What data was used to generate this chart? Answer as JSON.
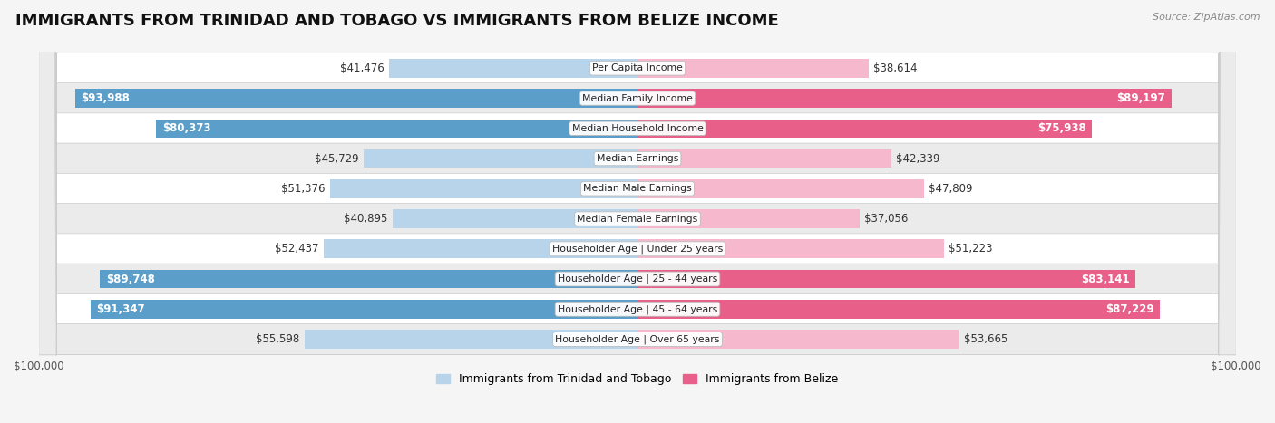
{
  "title": "IMMIGRANTS FROM TRINIDAD AND TOBAGO VS IMMIGRANTS FROM BELIZE INCOME",
  "source": "Source: ZipAtlas.com",
  "categories": [
    "Per Capita Income",
    "Median Family Income",
    "Median Household Income",
    "Median Earnings",
    "Median Male Earnings",
    "Median Female Earnings",
    "Householder Age | Under 25 years",
    "Householder Age | 25 - 44 years",
    "Householder Age | 45 - 64 years",
    "Householder Age | Over 65 years"
  ],
  "left_values": [
    41476,
    93988,
    80373,
    45729,
    51376,
    40895,
    52437,
    89748,
    91347,
    55598
  ],
  "right_values": [
    38614,
    89197,
    75938,
    42339,
    47809,
    37056,
    51223,
    83141,
    87229,
    53665
  ],
  "left_labels": [
    "$41,476",
    "$93,988",
    "$80,373",
    "$45,729",
    "$51,376",
    "$40,895",
    "$52,437",
    "$89,748",
    "$91,347",
    "$55,598"
  ],
  "right_labels": [
    "$38,614",
    "$89,197",
    "$75,938",
    "$42,339",
    "$47,809",
    "$37,056",
    "$51,223",
    "$83,141",
    "$87,229",
    "$53,665"
  ],
  "left_color_light": "#b8d4ea",
  "left_color_dark": "#5b9ec9",
  "right_color_light": "#f5b8cc",
  "right_color_dark": "#e8608a",
  "max_value": 100000,
  "background_color": "#f5f5f5",
  "row_color_odd": "#ffffff",
  "row_color_even": "#ebebeb",
  "title_fontsize": 13,
  "label_fontsize": 8.5,
  "cat_fontsize": 7.8,
  "legend_label_left": "Immigrants from Trinidad and Tobago",
  "legend_label_right": "Immigrants from Belize",
  "axis_label": "$100,000",
  "threshold_dark": 75000
}
